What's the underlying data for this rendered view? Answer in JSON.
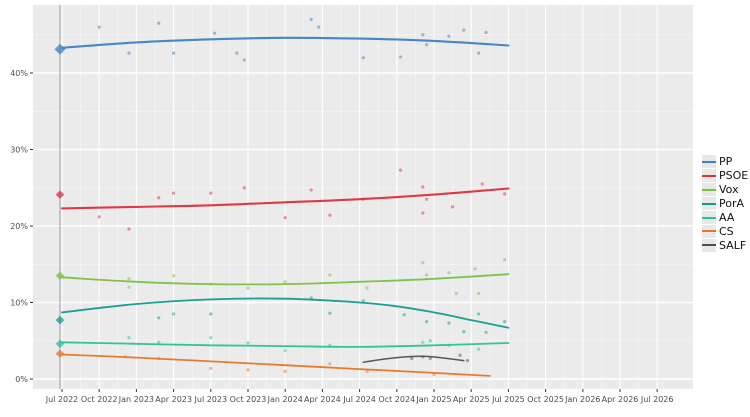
{
  "chart_data": {
    "type": "line",
    "title": "",
    "subtitle": "",
    "xlabel": "",
    "ylabel": "",
    "x_ticks": [
      "Jul 2022",
      "Oct 2022",
      "Jan 2023",
      "Apr 2023",
      "Jul 2023",
      "Oct 2023",
      "Jan 2024",
      "Apr 2024",
      "Jul 2024",
      "Oct 2024",
      "Jan 2025",
      "Apr 2025",
      "Jul 2025",
      "Oct 2025",
      "Jan 2026",
      "Apr 2026",
      "Jul 2026"
    ],
    "y_ticks": [
      "0%",
      "10%",
      "20%",
      "30%",
      "40%"
    ],
    "y_tick_values": [
      0,
      10,
      20,
      30,
      40
    ],
    "ylim": [
      0,
      48
    ],
    "x_range_quarters": [
      0,
      16
    ],
    "grid": "white-on-gray",
    "legend_position": "right-outside",
    "panel_color": "#ebebeb",
    "grid_color": "#ffffff",
    "election_line_color": "#9e9e9e",
    "tick_label_color": "#4d4d4d",
    "notes": "Local-regression trend lines of opinion polls; diamonds at left are the Jun 2022 election results; trends end at Jul 2025",
    "series": [
      {
        "name": "PP",
        "color": "#3d82c4",
        "election_result": 43.1,
        "trend": [
          [
            0,
            43.3
          ],
          [
            2,
            44.0
          ],
          [
            4,
            44.4
          ],
          [
            6,
            44.6
          ],
          [
            8,
            44.5
          ],
          [
            10,
            44.2
          ],
          [
            12,
            43.6
          ]
        ],
        "polls": [
          [
            1.0,
            46.0
          ],
          [
            1.8,
            42.6
          ],
          [
            2.6,
            46.5
          ],
          [
            3.0,
            42.6
          ],
          [
            4.1,
            45.2
          ],
          [
            4.7,
            42.6
          ],
          [
            4.9,
            41.7
          ],
          [
            6.7,
            47.0
          ],
          [
            6.9,
            46.0
          ],
          [
            8.1,
            42.0
          ],
          [
            9.1,
            42.1
          ],
          [
            9.7,
            45.0
          ],
          [
            9.8,
            43.7
          ],
          [
            10.4,
            44.8
          ],
          [
            10.8,
            45.6
          ],
          [
            11.2,
            42.6
          ],
          [
            11.4,
            45.3
          ]
        ]
      },
      {
        "name": "PSOE",
        "color": "#e02e3e",
        "election_result": 24.1,
        "trend": [
          [
            0,
            22.3
          ],
          [
            2,
            22.5
          ],
          [
            4,
            22.7
          ],
          [
            6,
            23.1
          ],
          [
            8,
            23.5
          ],
          [
            10,
            24.1
          ],
          [
            12,
            24.9
          ]
        ],
        "polls": [
          [
            1.0,
            21.2
          ],
          [
            1.8,
            19.6
          ],
          [
            2.6,
            23.7
          ],
          [
            3.0,
            24.3
          ],
          [
            4.0,
            24.3
          ],
          [
            4.9,
            25.0
          ],
          [
            6.0,
            21.1
          ],
          [
            6.7,
            24.7
          ],
          [
            7.2,
            21.4
          ],
          [
            8.1,
            23.5
          ],
          [
            9.1,
            27.3
          ],
          [
            9.7,
            25.1
          ],
          [
            9.8,
            23.5
          ],
          [
            9.7,
            21.7
          ],
          [
            10.5,
            22.5
          ],
          [
            11.3,
            25.5
          ],
          [
            11.9,
            24.2
          ]
        ]
      },
      {
        "name": "Vox",
        "color": "#79c043",
        "election_result": 13.5,
        "trend": [
          [
            0,
            13.3
          ],
          [
            2,
            12.7
          ],
          [
            4,
            12.4
          ],
          [
            6,
            12.4
          ],
          [
            8,
            12.7
          ],
          [
            10,
            13.1
          ],
          [
            12,
            13.7
          ]
        ],
        "polls": [
          [
            1.8,
            13.1
          ],
          [
            1.8,
            12.0
          ],
          [
            3.0,
            13.5
          ],
          [
            4.0,
            12.4
          ],
          [
            5.0,
            11.9
          ],
          [
            6.0,
            12.7
          ],
          [
            7.2,
            13.6
          ],
          [
            8.2,
            11.9
          ],
          [
            9.7,
            15.2
          ],
          [
            9.8,
            13.6
          ],
          [
            10.4,
            13.9
          ],
          [
            10.6,
            11.2
          ],
          [
            11.1,
            14.4
          ],
          [
            11.2,
            11.2
          ],
          [
            11.9,
            15.6
          ]
        ]
      },
      {
        "name": "PorA",
        "color": "#0f9c8c",
        "election_result": 7.7,
        "trend": [
          [
            0,
            8.7
          ],
          [
            2,
            9.8
          ],
          [
            4,
            10.4
          ],
          [
            6,
            10.5
          ],
          [
            8,
            10.0
          ],
          [
            9,
            9.5
          ],
          [
            10,
            8.7
          ],
          [
            11,
            7.7
          ],
          [
            12,
            6.7
          ]
        ],
        "polls": [
          [
            2.6,
            8.0
          ],
          [
            3.0,
            8.5
          ],
          [
            4.0,
            8.5
          ],
          [
            6.7,
            10.6
          ],
          [
            7.2,
            8.6
          ],
          [
            8.1,
            10.2
          ],
          [
            9.2,
            8.4
          ],
          [
            9.8,
            7.5
          ],
          [
            10.4,
            7.3
          ],
          [
            10.8,
            6.2
          ],
          [
            11.2,
            8.5
          ],
          [
            11.4,
            6.1
          ],
          [
            11.9,
            7.5
          ]
        ]
      },
      {
        "name": "AA",
        "color": "#27c29a",
        "election_result": 4.6,
        "trend": [
          [
            0,
            4.8
          ],
          [
            2,
            4.6
          ],
          [
            4,
            4.4
          ],
          [
            6,
            4.3
          ],
          [
            8,
            4.2
          ],
          [
            10,
            4.4
          ],
          [
            12,
            4.7
          ]
        ],
        "polls": [
          [
            1.8,
            5.4
          ],
          [
            2.6,
            4.8
          ],
          [
            4.0,
            5.4
          ],
          [
            5.0,
            4.7
          ],
          [
            6.0,
            3.7
          ],
          [
            7.2,
            4.4
          ],
          [
            9.7,
            4.8
          ],
          [
            9.9,
            5.0
          ],
          [
            10.4,
            4.4
          ],
          [
            11.2,
            3.9
          ]
        ]
      },
      {
        "name": "CS",
        "color": "#ea7426",
        "election_result": 3.3,
        "trend": [
          [
            0,
            3.2
          ],
          [
            2,
            2.8
          ],
          [
            4,
            2.3
          ],
          [
            6,
            1.8
          ],
          [
            8,
            1.3
          ],
          [
            10,
            0.8
          ],
          [
            11.5,
            0.4
          ]
        ],
        "polls": [
          [
            1.7,
            2.9
          ],
          [
            2.6,
            2.7
          ],
          [
            4.0,
            1.4
          ],
          [
            5.0,
            1.2
          ],
          [
            6.0,
            1.0
          ],
          [
            7.2,
            2.0
          ],
          [
            8.2,
            1.0
          ],
          [
            10.0,
            0.6
          ]
        ]
      },
      {
        "name": "SALF",
        "color": "#4f4f4f",
        "election_result": null,
        "trend": [
          [
            8.1,
            2.2
          ],
          [
            9.0,
            2.8
          ],
          [
            9.8,
            2.95
          ],
          [
            10.8,
            2.4
          ]
        ],
        "polls": [
          [
            9.4,
            2.7
          ],
          [
            9.7,
            2.9
          ],
          [
            9.9,
            2.7
          ],
          [
            10.7,
            3.1
          ],
          [
            10.9,
            2.4
          ]
        ]
      }
    ]
  }
}
